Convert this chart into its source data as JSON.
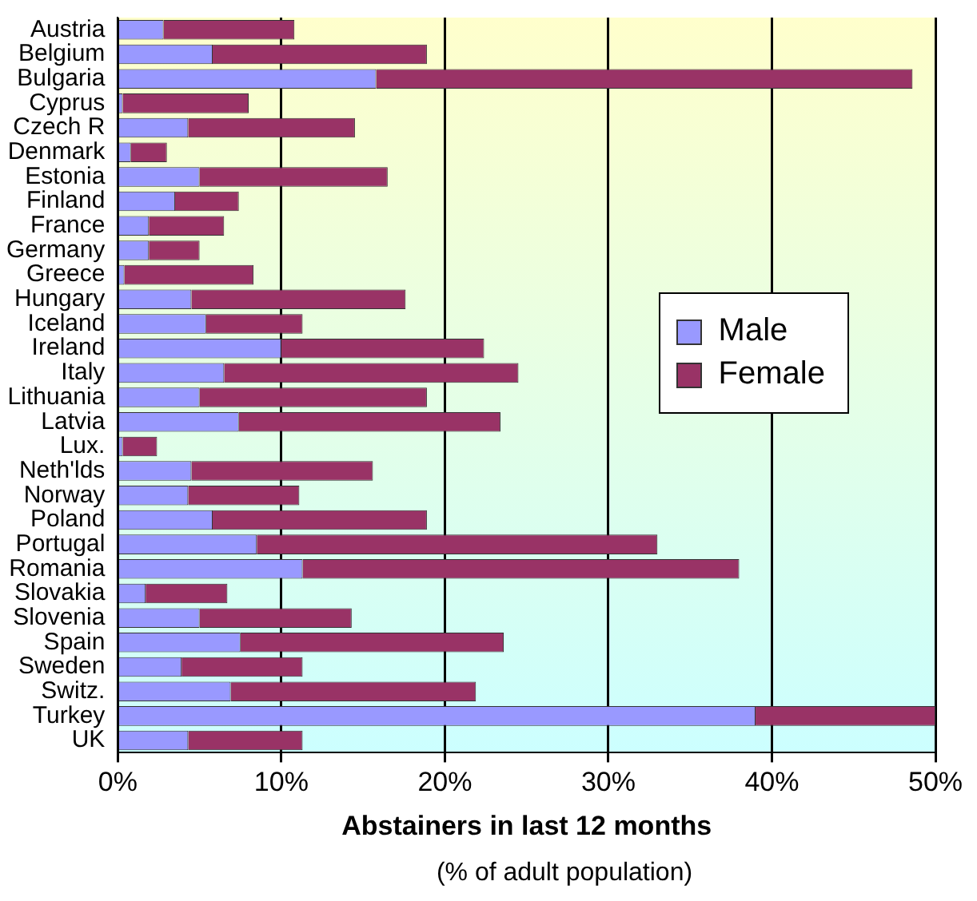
{
  "chart_data": {
    "type": "bar",
    "orientation": "horizontal",
    "stacked": true,
    "categories": [
      "Austria",
      "Belgium",
      "Bulgaria",
      "Cyprus",
      "Czech R",
      "Denmark",
      "Estonia",
      "Finland",
      "France",
      "Germany",
      "Greece",
      "Hungary",
      "Iceland",
      "Ireland",
      "Italy",
      "Lithuania",
      "Latvia",
      "Lux.",
      "Neth'lds",
      "Norway",
      "Poland",
      "Portugal",
      "Romania",
      "Slovakia",
      "Slovenia",
      "Spain",
      "Sweden",
      "Switz.",
      "Turkey",
      "UK"
    ],
    "series": [
      {
        "name": "Male",
        "color": "#9999ff",
        "values": [
          2.8,
          5.8,
          15.8,
          0.3,
          4.3,
          0.8,
          5.0,
          3.5,
          1.9,
          1.9,
          0.4,
          4.5,
          5.4,
          10.0,
          6.5,
          5.0,
          7.4,
          0.3,
          4.5,
          4.3,
          5.8,
          8.5,
          11.3,
          1.7,
          5.0,
          7.5,
          3.9,
          6.9,
          39.0,
          4.3
        ]
      },
      {
        "name": "Female",
        "color": "#993366",
        "values": [
          8.0,
          13.1,
          32.8,
          7.7,
          10.2,
          2.2,
          11.5,
          3.9,
          4.6,
          3.1,
          7.9,
          13.1,
          5.9,
          12.4,
          18.0,
          13.9,
          16.0,
          2.1,
          11.1,
          6.8,
          13.1,
          24.5,
          26.7,
          5.0,
          9.3,
          16.1,
          7.4,
          15.0,
          11.0,
          7.0
        ]
      }
    ],
    "xlim": [
      0,
      50
    ],
    "xticks": [
      {
        "value": 0,
        "label": "0%"
      },
      {
        "value": 10,
        "label": "10%"
      },
      {
        "value": 20,
        "label": "20%"
      },
      {
        "value": 30,
        "label": "30%"
      },
      {
        "value": 40,
        "label": "40%"
      },
      {
        "value": 50,
        "label": "50%"
      }
    ],
    "xlabel": "Abstainers in last 12 months",
    "annotations": [
      "(% of adult population)"
    ],
    "grid": "x",
    "legend": "right"
  }
}
